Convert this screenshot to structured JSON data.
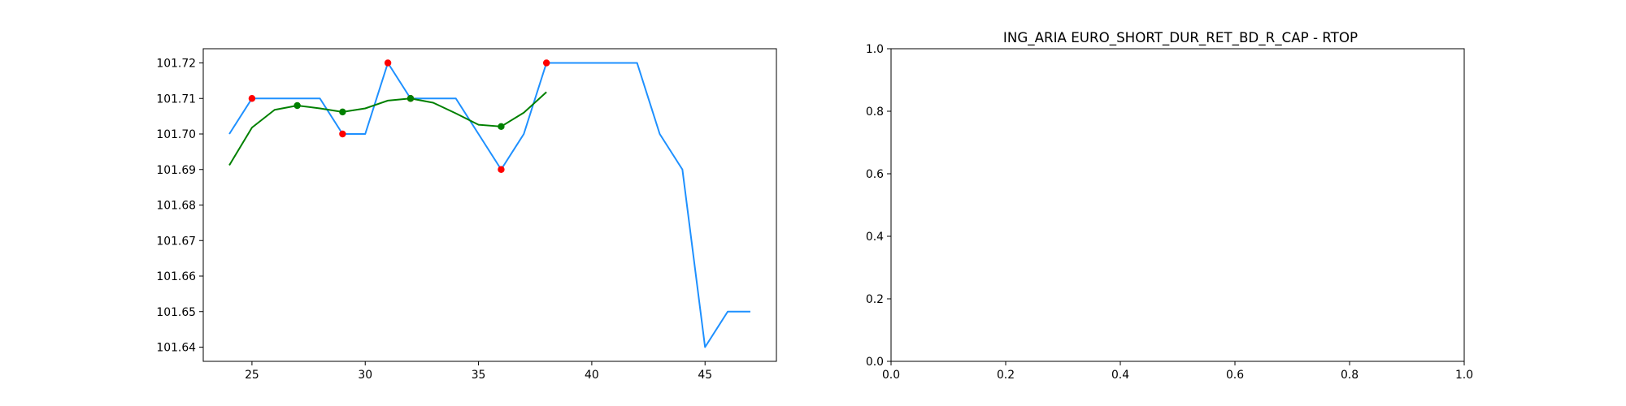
{
  "chart_data": [
    {
      "type": "line",
      "title": "",
      "xlabel": "",
      "ylabel": "",
      "xlim": [
        22.85,
        48.15
      ],
      "ylim": [
        101.636,
        101.724
      ],
      "grid": false,
      "x_ticks": [
        25,
        30,
        35,
        40,
        45
      ],
      "y_ticks": [
        101.64,
        101.65,
        101.66,
        101.67,
        101.68,
        101.69,
        101.7,
        101.71,
        101.72
      ],
      "y_tick_labels": [
        "101.64",
        "101.65",
        "101.66",
        "101.67",
        "101.68",
        "101.69",
        "101.70",
        "101.71",
        "101.72"
      ],
      "series": [
        {
          "kind": "line",
          "color": "#1e90ff",
          "x": [
            24,
            25,
            26,
            27,
            28,
            29,
            30,
            31,
            32,
            33,
            34,
            35,
            36,
            37,
            38,
            39,
            40,
            41,
            42,
            43,
            44,
            45,
            46,
            47
          ],
          "y": [
            101.7,
            101.71,
            101.71,
            101.71,
            101.71,
            101.7,
            101.7,
            101.72,
            101.71,
            101.71,
            101.71,
            101.7,
            101.69,
            101.7,
            101.72,
            101.72,
            101.72,
            101.72,
            101.72,
            101.7,
            101.69,
            101.64,
            101.65,
            101.65
          ]
        },
        {
          "kind": "line",
          "color": "#008000",
          "x": [
            24,
            25,
            26,
            27,
            28,
            29,
            30,
            31,
            32,
            33,
            34,
            35,
            36,
            37,
            38
          ],
          "y": [
            101.6912,
            101.7018,
            101.7068,
            101.708,
            101.7072,
            101.7062,
            101.7072,
            101.7094,
            101.71,
            101.7088,
            101.7058,
            101.7026,
            101.7021,
            101.706,
            101.7118
          ]
        },
        {
          "kind": "scatter",
          "color": "#ff0000",
          "x": [
            25,
            29,
            31,
            32,
            36,
            38
          ],
          "y": [
            101.71,
            101.7,
            101.72,
            101.71,
            101.69,
            101.72
          ]
        },
        {
          "kind": "scatter",
          "color": "#008000",
          "x": [
            27,
            29,
            32,
            36
          ],
          "y": [
            101.708,
            101.7062,
            101.71,
            101.7021
          ]
        }
      ]
    },
    {
      "type": "line",
      "title": "ING_ARIA EURO_SHORT_DUR_RET_BD_R_CAP - RTOP",
      "xlabel": "",
      "ylabel": "",
      "xlim": [
        0,
        1
      ],
      "ylim": [
        0,
        1
      ],
      "grid": false,
      "x_ticks": [
        0,
        0.2,
        0.4,
        0.6,
        0.8,
        1.0
      ],
      "x_tick_labels": [
        "0.0",
        "0.2",
        "0.4",
        "0.6",
        "0.8",
        "1.0"
      ],
      "y_ticks": [
        0,
        0.2,
        0.4,
        0.6,
        0.8,
        1.0
      ],
      "y_tick_labels": [
        "0.0",
        "0.2",
        "0.4",
        "0.6",
        "0.8",
        "1.0"
      ],
      "series": []
    }
  ]
}
